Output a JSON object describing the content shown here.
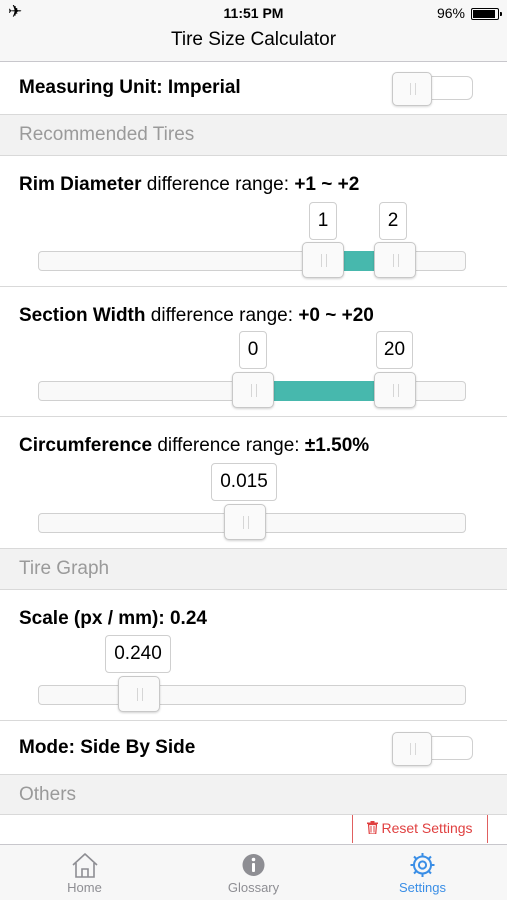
{
  "status_bar": {
    "time": "11:51 PM",
    "battery_percent": "96%",
    "airplane_icon": "airplane-icon",
    "battery_level": 0.96
  },
  "nav": {
    "title": "Tire Size Calculator"
  },
  "measuring_unit": {
    "label": "Measuring Unit: Imperial",
    "toggle_on": false
  },
  "sections": {
    "recommended": "Recommended Tires",
    "graph": "Tire Graph",
    "others": "Others"
  },
  "rim_diameter": {
    "label_bold": "Rim Diameter",
    "label_text": " difference range: ",
    "range_bold": "+1 ~ +2",
    "min_value": "1",
    "max_value": "2",
    "fill_color": "#47b8ad"
  },
  "section_width": {
    "label_bold": "Section Width",
    "label_text": " difference range: ",
    "range_bold": "+0 ~ +20",
    "min_value": "0",
    "max_value": "20",
    "fill_color": "#47b8ad"
  },
  "circumference": {
    "label_bold": "Circumference",
    "label_text": " difference range: ",
    "range_bold": "±1.50%",
    "value": "0.015"
  },
  "scale": {
    "label": "Scale (px / mm): 0.24",
    "value": "0.240"
  },
  "mode": {
    "label": "Mode: Side By Side",
    "toggle_on": false
  },
  "reset": {
    "label": "Reset Settings",
    "icon": "trash-icon",
    "color": "#e04040"
  },
  "tabs": [
    {
      "label": "Home",
      "icon": "home-icon",
      "active": false
    },
    {
      "label": "Glossary",
      "icon": "info-icon",
      "active": false
    },
    {
      "label": "Settings",
      "icon": "gear-icon",
      "active": true
    }
  ],
  "colors": {
    "accent": "#3a8ee6",
    "slider_fill": "#47b8ad",
    "destructive": "#e04040"
  }
}
